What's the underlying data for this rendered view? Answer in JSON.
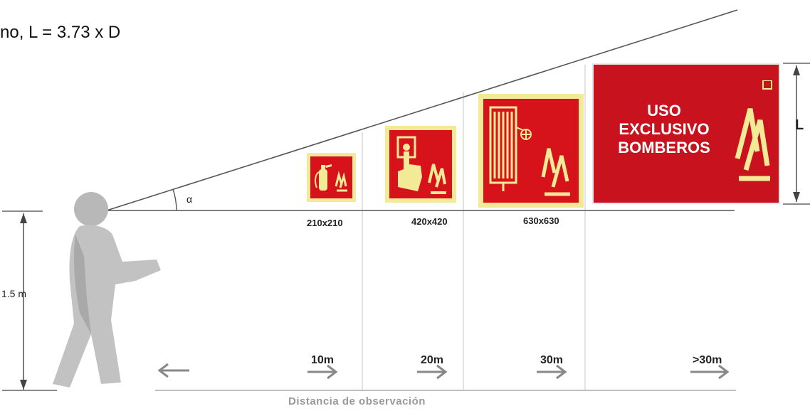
{
  "formula_text": "no, L = 3.73 x D",
  "angle_label": "α",
  "height_label": "1.5 m",
  "sign_height_label": "L",
  "signs": [
    {
      "size": "210x210",
      "icon": "fire-extinguisher-icon"
    },
    {
      "size": "420x420",
      "icon": "alarm-button-icon"
    },
    {
      "size": "630x630",
      "icon": "fire-hose-reel-icon"
    },
    {
      "text_lines": [
        "USO",
        "EXCLUSIVO",
        "BOMBEROS"
      ],
      "icon": "flame-icon"
    }
  ],
  "distances": [
    "10m",
    "20m",
    "30m",
    ">30m"
  ],
  "axis_label": "Distancia de observación",
  "colors": {
    "sign_red": "#d6131b",
    "photoluminescent": "#f3ea98",
    "figure_gray": "#b8b8b8"
  }
}
